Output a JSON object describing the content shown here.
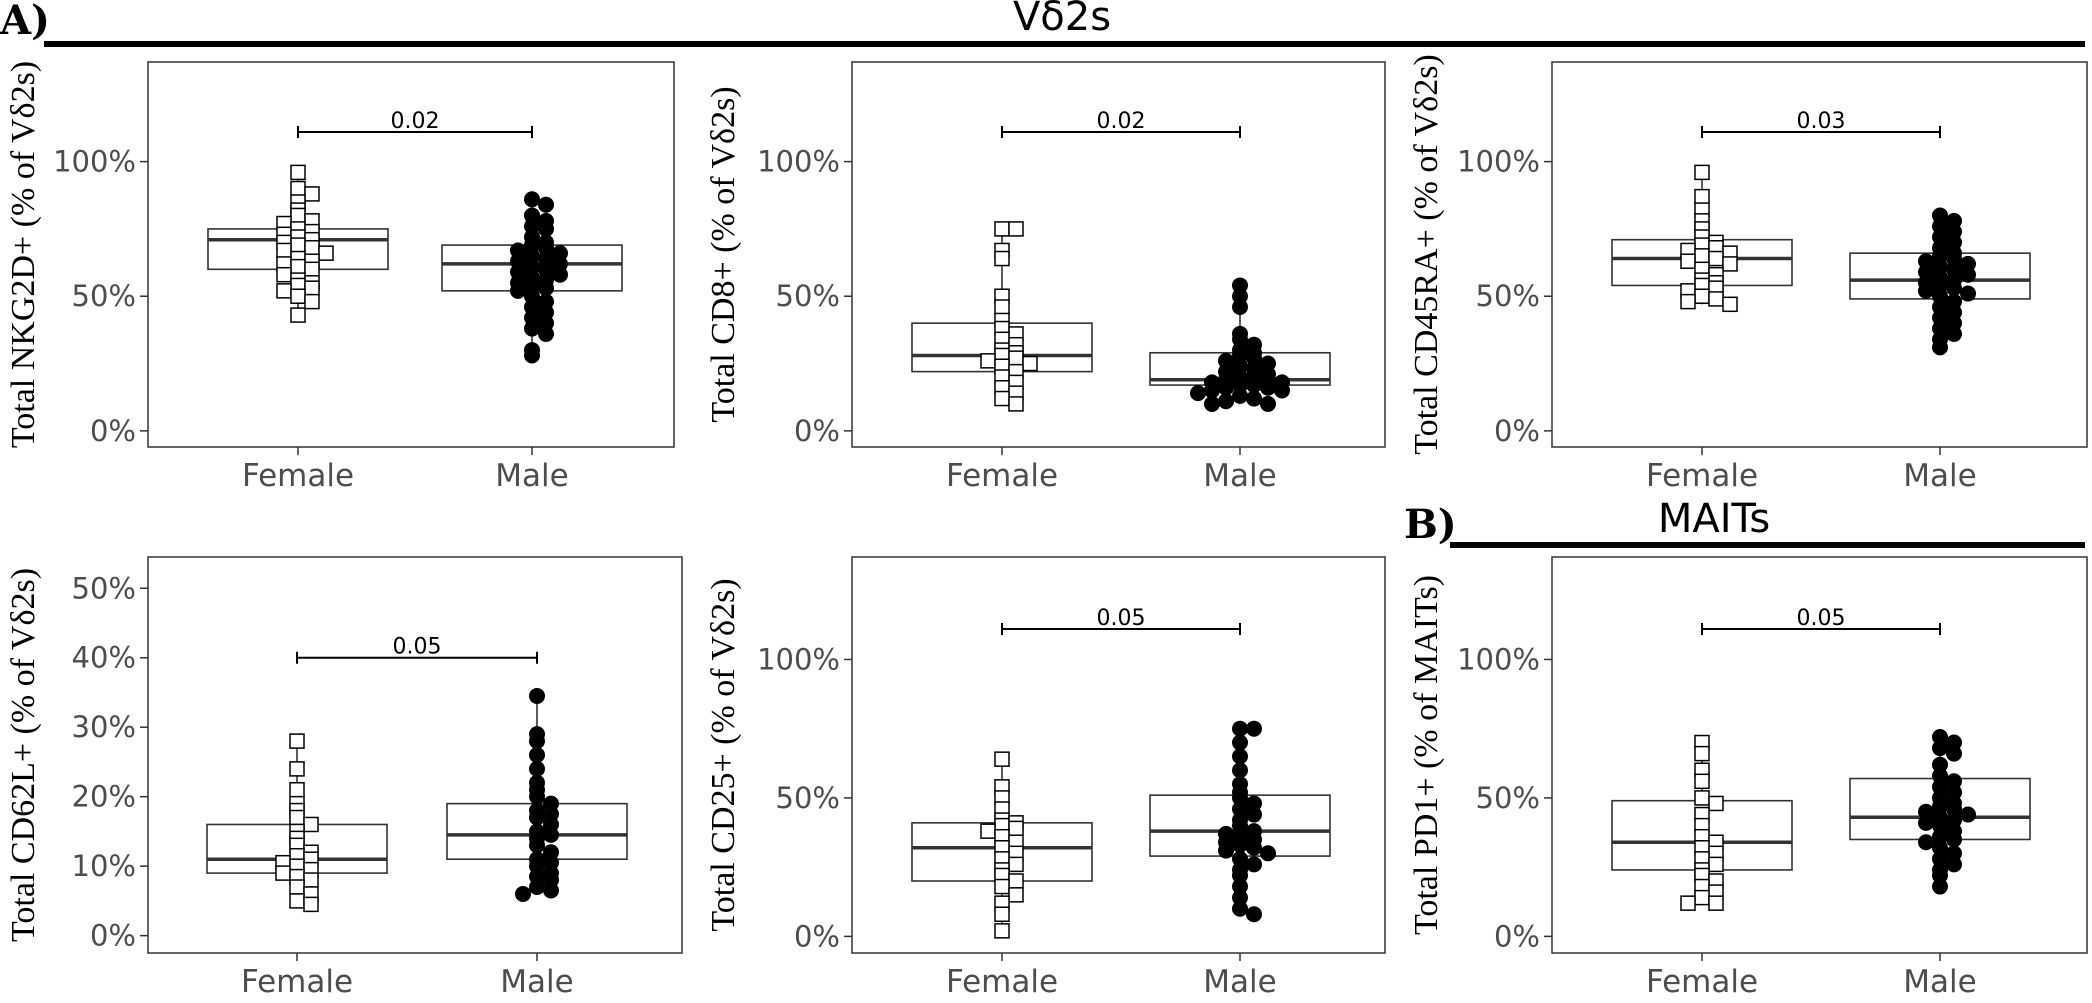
{
  "sections": [
    {
      "label": "A)",
      "title": "Vδ2s"
    },
    {
      "label": "B)",
      "title": "MAITs"
    }
  ],
  "chart_data": [
    {
      "type": "box",
      "section": "A)",
      "ylabel": "Total NKG2D+  (% of  Vδ2s)",
      "categories": [
        "Female",
        "Male"
      ],
      "y_ticks": [
        "0%",
        "50%",
        "100%"
      ],
      "ylim": [
        -6,
        137
      ],
      "boxes": [
        {
          "category": "Female",
          "q1": 60,
          "median": 71,
          "q3": 75,
          "whisker_low": 43,
          "whisker_high": 96
        },
        {
          "category": "Male",
          "q1": 52,
          "median": 62,
          "q3": 69,
          "whisker_low": 28,
          "whisker_high": 86
        }
      ],
      "points": [
        {
          "category": "Female",
          "marker": "open-square",
          "values": [
            96,
            90,
            88,
            85,
            82,
            80,
            78,
            77,
            75,
            74,
            73,
            72,
            71,
            70,
            69,
            68,
            67,
            66,
            64,
            63,
            62,
            61,
            60,
            58,
            56,
            55,
            54,
            53,
            52,
            50,
            48,
            43
          ]
        },
        {
          "category": "Male",
          "marker": "filled-circle",
          "values": [
            86,
            84,
            80,
            78,
            76,
            75,
            72,
            70,
            69,
            68,
            67,
            66,
            65,
            64,
            63,
            62,
            61,
            60,
            59,
            58,
            57,
            56,
            55,
            54,
            53,
            52,
            50,
            48,
            46,
            44,
            42,
            40,
            38,
            36,
            30,
            28
          ]
        }
      ],
      "significance": {
        "p": "0.02",
        "y": 111
      }
    },
    {
      "type": "box",
      "section": "A)",
      "ylabel": "Total CD8+  (% of  Vδ2s)",
      "categories": [
        "Female",
        "Male"
      ],
      "y_ticks": [
        "0%",
        "50%",
        "100%"
      ],
      "ylim": [
        -6,
        137
      ],
      "boxes": [
        {
          "category": "Female",
          "q1": 22,
          "median": 28,
          "q3": 40,
          "whisker_low": 10,
          "whisker_high": 75
        },
        {
          "category": "Male",
          "q1": 17,
          "median": 19,
          "q3": 29,
          "whisker_low": 10,
          "whisker_high": 54
        }
      ],
      "points": [
        {
          "category": "Female",
          "marker": "open-square",
          "values": [
            75,
            75,
            67,
            64,
            50,
            46,
            41,
            38,
            36,
            34,
            32,
            30,
            29,
            28,
            27,
            26,
            25,
            24,
            22,
            20,
            18,
            16,
            14,
            12,
            10
          ]
        },
        {
          "category": "Male",
          "marker": "filled-circle",
          "values": [
            54,
            50,
            46,
            36,
            34,
            32,
            30,
            29,
            28,
            27,
            26,
            25,
            24,
            23,
            22,
            21,
            20,
            20,
            19,
            19,
            18,
            18,
            17,
            17,
            16,
            16,
            15,
            15,
            14,
            13,
            12,
            11,
            10,
            10
          ]
        }
      ],
      "significance": {
        "p": "0.02",
        "y": 111
      }
    },
    {
      "type": "box",
      "section": "A)",
      "ylabel": "Total CD45RA+  (% of  Vδ2s)",
      "categories": [
        "Female",
        "Male"
      ],
      "y_ticks": [
        "0%",
        "50%",
        "100%"
      ],
      "ylim": [
        -6,
        137
      ],
      "boxes": [
        {
          "category": "Female",
          "q1": 54,
          "median": 64,
          "q3": 71,
          "whisker_low": 47,
          "whisker_high": 96
        },
        {
          "category": "Male",
          "q1": 49,
          "median": 56,
          "q3": 66,
          "whisker_low": 31,
          "whisker_high": 80
        }
      ],
      "points": [
        {
          "category": "Female",
          "marker": "open-square",
          "values": [
            96,
            87,
            82,
            78,
            75,
            72,
            70,
            69,
            68,
            67,
            66,
            65,
            64,
            63,
            62,
            60,
            58,
            56,
            55,
            54,
            53,
            52,
            50,
            49,
            48,
            47
          ]
        },
        {
          "category": "Male",
          "marker": "filled-circle",
          "values": [
            80,
            78,
            76,
            74,
            72,
            70,
            68,
            66,
            65,
            64,
            63,
            62,
            61,
            60,
            59,
            58,
            57,
            56,
            55,
            54,
            53,
            52,
            51,
            50,
            48,
            46,
            44,
            42,
            40,
            38,
            36,
            34,
            31
          ]
        }
      ],
      "significance": {
        "p": "0.03",
        "y": 111
      }
    },
    {
      "type": "box",
      "section": "A)",
      "ylabel": "Total CD62L+  (% of  Vδ2s)",
      "categories": [
        "Female",
        "Male"
      ],
      "y_ticks": [
        "0%",
        "10%",
        "20%",
        "30%",
        "40%",
        "50%"
      ],
      "ylim": [
        -2.5,
        54.5
      ],
      "boxes": [
        {
          "category": "Female",
          "q1": 9,
          "median": 11,
          "q3": 16,
          "whisker_low": 4.5,
          "whisker_high": 28
        },
        {
          "category": "Male",
          "q1": 11,
          "median": 14.5,
          "q3": 19,
          "whisker_low": 6,
          "whisker_high": 34.5
        }
      ],
      "points": [
        {
          "category": "Female",
          "marker": "open-square",
          "values": [
            28,
            24,
            21,
            19,
            18,
            17,
            16,
            15,
            14,
            13,
            12,
            11.5,
            11,
            10.5,
            10,
            9.5,
            9,
            8.5,
            8,
            7,
            6,
            5,
            4.5
          ]
        },
        {
          "category": "Male",
          "marker": "filled-circle",
          "values": [
            34.5,
            29,
            28,
            26,
            24,
            22,
            21,
            20,
            19,
            18,
            17.5,
            17,
            16,
            15,
            14.5,
            14,
            13,
            12,
            11,
            10.5,
            10,
            9,
            8.5,
            8,
            7,
            6.5,
            6
          ]
        }
      ],
      "significance": {
        "p": "0.05",
        "y": 40
      }
    },
    {
      "type": "box",
      "section": "A)",
      "ylabel": "Total CD25+  (% of  Vδ2s)",
      "categories": [
        "Female",
        "Male"
      ],
      "y_ticks": [
        "0%",
        "50%",
        "100%"
      ],
      "ylim": [
        -6,
        137
      ],
      "boxes": [
        {
          "category": "Female",
          "q1": 20,
          "median": 32,
          "q3": 41,
          "whisker_low": 2,
          "whisker_high": 64
        },
        {
          "category": "Male",
          "q1": 29,
          "median": 38,
          "q3": 51,
          "whisker_low": 8,
          "whisker_high": 75
        }
      ],
      "points": [
        {
          "category": "Female",
          "marker": "open-square",
          "values": [
            64,
            54,
            50,
            46,
            42,
            41,
            40,
            39,
            38,
            36,
            34,
            32,
            30,
            28,
            26,
            24,
            22,
            20,
            18,
            15,
            12,
            8,
            2
          ]
        },
        {
          "category": "Male",
          "marker": "filled-circle",
          "values": [
            75,
            75,
            70,
            65,
            60,
            55,
            52,
            50,
            48,
            46,
            44,
            42,
            40,
            38,
            37,
            36,
            35,
            34,
            33,
            32,
            31,
            30,
            28,
            26,
            24,
            22,
            18,
            14,
            10,
            8
          ]
        }
      ],
      "significance": {
        "p": "0.05",
        "y": 111
      }
    },
    {
      "type": "box",
      "section": "B)",
      "ylabel": "Total PD1+  (% of  MAITs)",
      "categories": [
        "Female",
        "Male"
      ],
      "y_ticks": [
        "0%",
        "50%",
        "100%"
      ],
      "ylim": [
        -6,
        137
      ],
      "boxes": [
        {
          "category": "Female",
          "q1": 24,
          "median": 34,
          "q3": 49,
          "whisker_low": 12,
          "whisker_high": 70
        },
        {
          "category": "Male",
          "q1": 35,
          "median": 43,
          "q3": 57,
          "whisker_low": 18,
          "whisker_high": 72
        }
      ],
      "points": [
        {
          "category": "Female",
          "marker": "open-square",
          "values": [
            70,
            66,
            60,
            56,
            50,
            48,
            44,
            40,
            36,
            34,
            32,
            30,
            28,
            26,
            24,
            22,
            20,
            18,
            16,
            14,
            12,
            12
          ]
        },
        {
          "category": "Male",
          "marker": "filled-circle",
          "values": [
            72,
            70,
            68,
            66,
            62,
            58,
            56,
            54,
            52,
            50,
            48,
            47,
            46,
            45,
            44,
            43,
            42,
            41,
            40,
            38,
            36,
            35,
            34,
            32,
            30,
            28,
            26,
            24,
            22,
            18
          ]
        }
      ],
      "significance": {
        "p": "0.05",
        "y": 111
      }
    }
  ]
}
